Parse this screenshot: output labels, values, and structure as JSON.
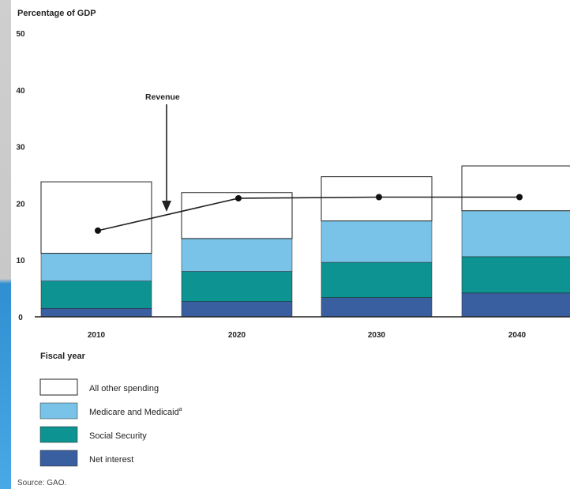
{
  "chart_data": {
    "type": "bar",
    "stacked": true,
    "ylabel": "Percentage of GDP",
    "xlabel": "Fiscal year",
    "ylim": [
      0,
      50
    ],
    "yticks": [
      0,
      10,
      20,
      30,
      40,
      50
    ],
    "categories": [
      "2010",
      "2020",
      "2030",
      "2040"
    ],
    "series": [
      {
        "name": "Net interest",
        "color": "#3a5fa0",
        "values": [
          1.5,
          2.7,
          3.4,
          4.2
        ]
      },
      {
        "name": "Social Security",
        "color": "#0d9391",
        "values": [
          4.8,
          5.3,
          6.2,
          6.4
        ]
      },
      {
        "name": "Medicare and Medicaid",
        "color": "#79c2e8",
        "values": [
          4.9,
          5.8,
          7.3,
          8.1
        ]
      },
      {
        "name": "All other spending",
        "color": "#ffffff",
        "values": [
          12.6,
          8.1,
          7.8,
          7.9
        ]
      }
    ],
    "line": {
      "name": "Revenue",
      "values": [
        15.2,
        20.9,
        21.1,
        21.1
      ]
    },
    "annotation": {
      "text": "Revenue"
    },
    "legend_position": "bottom-left"
  },
  "legend": {
    "items": [
      {
        "label": "All other spending",
        "color": "#ffffff"
      },
      {
        "label": "Medicare and Medicaid",
        "superscript": "a",
        "color": "#79c2e8"
      },
      {
        "label": "Social Security",
        "color": "#0d9391"
      },
      {
        "label": "Net interest",
        "color": "#3a5fa0"
      }
    ]
  },
  "source": "Source: GAO."
}
